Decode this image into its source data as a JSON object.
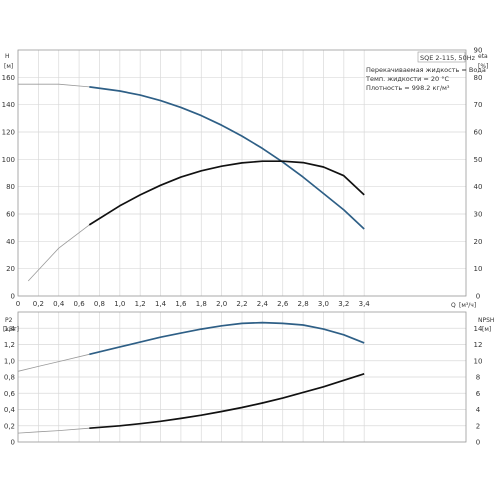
{
  "chart_data": [
    {
      "type": "line",
      "title": "SQE 2-115, 50Hz",
      "annotations": [
        "Перекачиваемая жидкость = Вода",
        "Темп. жидкости = 20 °C",
        "Плотность = 998.2 кг/м³"
      ],
      "xlabel": "Q",
      "xunit": "[м³/ч]",
      "xlim": [
        0,
        4.4
      ],
      "xticks": [
        "0",
        "0,2",
        "0,4",
        "0,6",
        "0,8",
        "1,0",
        "1,2",
        "1,4",
        "1,6",
        "1,8",
        "2,0",
        "2,2",
        "2,4",
        "2,6",
        "2,8",
        "3,0",
        "3,2",
        "3,4"
      ],
      "ylabel_left": "H",
      "yunit_left": "[м]",
      "ylim_left": [
        0,
        180
      ],
      "yticks_left": [
        "0",
        "20",
        "40",
        "60",
        "80",
        "100",
        "120",
        "140",
        "160"
      ],
      "ylabel_right": "eta",
      "yunit_right": "[%]",
      "ylim_right": [
        0,
        90
      ],
      "yticks_right": [
        "0",
        "10",
        "20",
        "30",
        "40",
        "50",
        "60",
        "70",
        "80",
        "90"
      ],
      "grid": true,
      "series": [
        {
          "axis": "left",
          "color": "#2e5f86",
          "x": [
            0,
            0.2,
            0.4,
            0.7,
            1.0,
            1.2,
            1.4,
            1.6,
            1.8,
            2.0,
            2.2,
            2.4,
            2.6,
            2.8,
            3.0,
            3.2,
            3.4
          ],
          "values": [
            155,
            155,
            155,
            153,
            150,
            147,
            143,
            138,
            132,
            125,
            117,
            108,
            98,
            87,
            75,
            63,
            49
          ],
          "thin_until": 0.7
        },
        {
          "axis": "right",
          "color": "#111111",
          "x": [
            0.1,
            0.2,
            0.4,
            0.7,
            1.0,
            1.2,
            1.4,
            1.6,
            1.8,
            2.0,
            2.2,
            2.4,
            2.6,
            2.8,
            3.0,
            3.2,
            3.4
          ],
          "values": [
            5.5,
            9.5,
            17.5,
            26,
            33,
            37,
            40.5,
            43.5,
            45.8,
            47.5,
            48.7,
            49.3,
            49.3,
            48.8,
            47.2,
            44,
            37
          ],
          "thin_until": 0.7
        }
      ]
    },
    {
      "type": "line",
      "xlim": [
        0,
        4.4
      ],
      "ylabel_left": "P2",
      "yunit_left": "[кВт]",
      "ylim_left": [
        0,
        1.6
      ],
      "yticks_left": [
        "0",
        "0,2",
        "0,4",
        "0,6",
        "0,8",
        "1,0",
        "1,2",
        "1,4"
      ],
      "ylabel_right": "NPSH",
      "yunit_right": "[м]",
      "ylim_right": [
        0,
        16
      ],
      "yticks_right": [
        "0",
        "2",
        "4",
        "6",
        "8",
        "10",
        "12",
        "14"
      ],
      "grid": true,
      "series": [
        {
          "axis": "left",
          "color": "#2e5f86",
          "x": [
            0,
            0.2,
            0.4,
            0.7,
            1.0,
            1.2,
            1.4,
            1.6,
            1.8,
            2.0,
            2.2,
            2.4,
            2.6,
            2.8,
            3.0,
            3.2,
            3.4
          ],
          "values": [
            0.87,
            0.93,
            0.99,
            1.08,
            1.17,
            1.23,
            1.29,
            1.34,
            1.39,
            1.43,
            1.46,
            1.47,
            1.46,
            1.44,
            1.39,
            1.32,
            1.22
          ],
          "thin_until": 0.7
        },
        {
          "axis": "right",
          "color": "#111111",
          "x": [
            0,
            0.2,
            0.4,
            0.7,
            1.0,
            1.2,
            1.4,
            1.6,
            1.8,
            2.0,
            2.2,
            2.4,
            2.6,
            2.8,
            3.0,
            3.2,
            3.4
          ],
          "values": [
            1.1,
            1.25,
            1.4,
            1.7,
            2.0,
            2.25,
            2.55,
            2.9,
            3.3,
            3.75,
            4.25,
            4.8,
            5.4,
            6.1,
            6.8,
            7.6,
            8.4
          ],
          "thin_until": 0.7
        }
      ]
    }
  ]
}
